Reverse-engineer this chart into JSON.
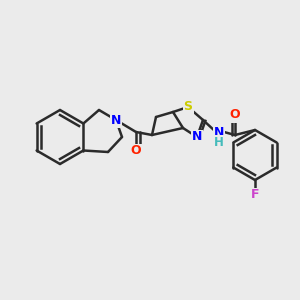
{
  "background_color": "#ebebeb",
  "bond_color": "#2b2b2b",
  "bond_width": 1.8,
  "atom_colors": {
    "N": "#0000ff",
    "O": "#ff2200",
    "S": "#cccc00",
    "F": "#cc44cc",
    "H": "#44bbbb",
    "C": "#2b2b2b"
  },
  "figsize": [
    3.0,
    3.0
  ],
  "dpi": 100
}
